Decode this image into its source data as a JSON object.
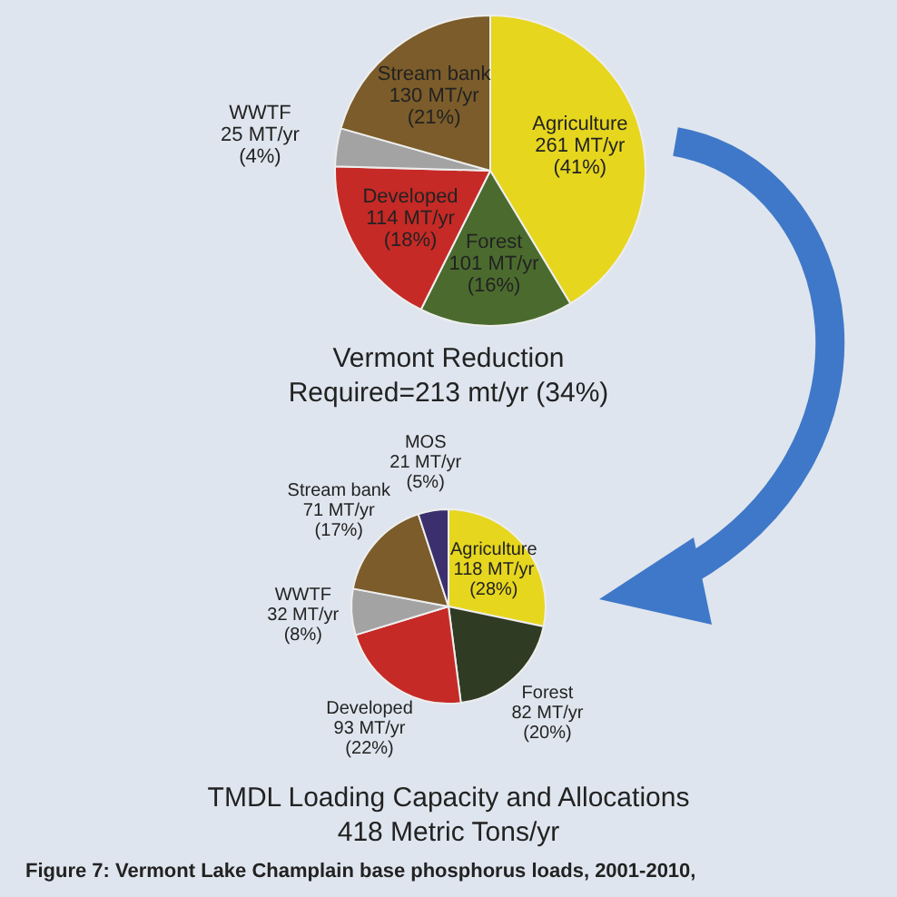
{
  "chart_data": [
    {
      "type": "pie",
      "categories": [
        "Agriculture",
        "Forest",
        "Developed",
        "WWTF",
        "Stream bank"
      ],
      "values": [
        261,
        101,
        114,
        25,
        130
      ],
      "colors": [
        "#e6d61e",
        "#4b6b2e",
        "#c62a26",
        "#a3a3a3",
        "#7b5c2a"
      ],
      "value_labels": [
        "261 MT/yr (41%)",
        "101 MT/yr (16%)",
        "114 MT/yr (18%)",
        "25 MT/yr (4%)",
        "130 MT/yr (21%)"
      ],
      "annotations": [
        "Vermont Reduction",
        "Required=213 mt/yr (34%)"
      ]
    },
    {
      "type": "pie",
      "title": "TMDL Loading Capacity and Allocations",
      "subtitle": "418 Metric Tons/yr",
      "categories": [
        "Agriculture",
        "Forest",
        "Developed",
        "WWTF",
        "Stream bank",
        "MOS"
      ],
      "values": [
        118,
        82,
        93,
        32,
        71,
        21
      ],
      "colors": [
        "#e6d61e",
        "#2f3b22",
        "#c62a26",
        "#a3a3a3",
        "#7b5c2a",
        "#3b2f6e"
      ],
      "value_labels": [
        "118 MT/yr (28%)",
        "82 MT/yr (20%)",
        "93 MT/yr (22%)",
        "32 MT/yr (8%)",
        "71 MT/yr (17%)",
        "21 MT/yr (5%)"
      ],
      "annotations": [
        "Figure 7: Vermont Lake Champlain base phosphorus loads, 2001-2010,"
      ]
    }
  ]
}
